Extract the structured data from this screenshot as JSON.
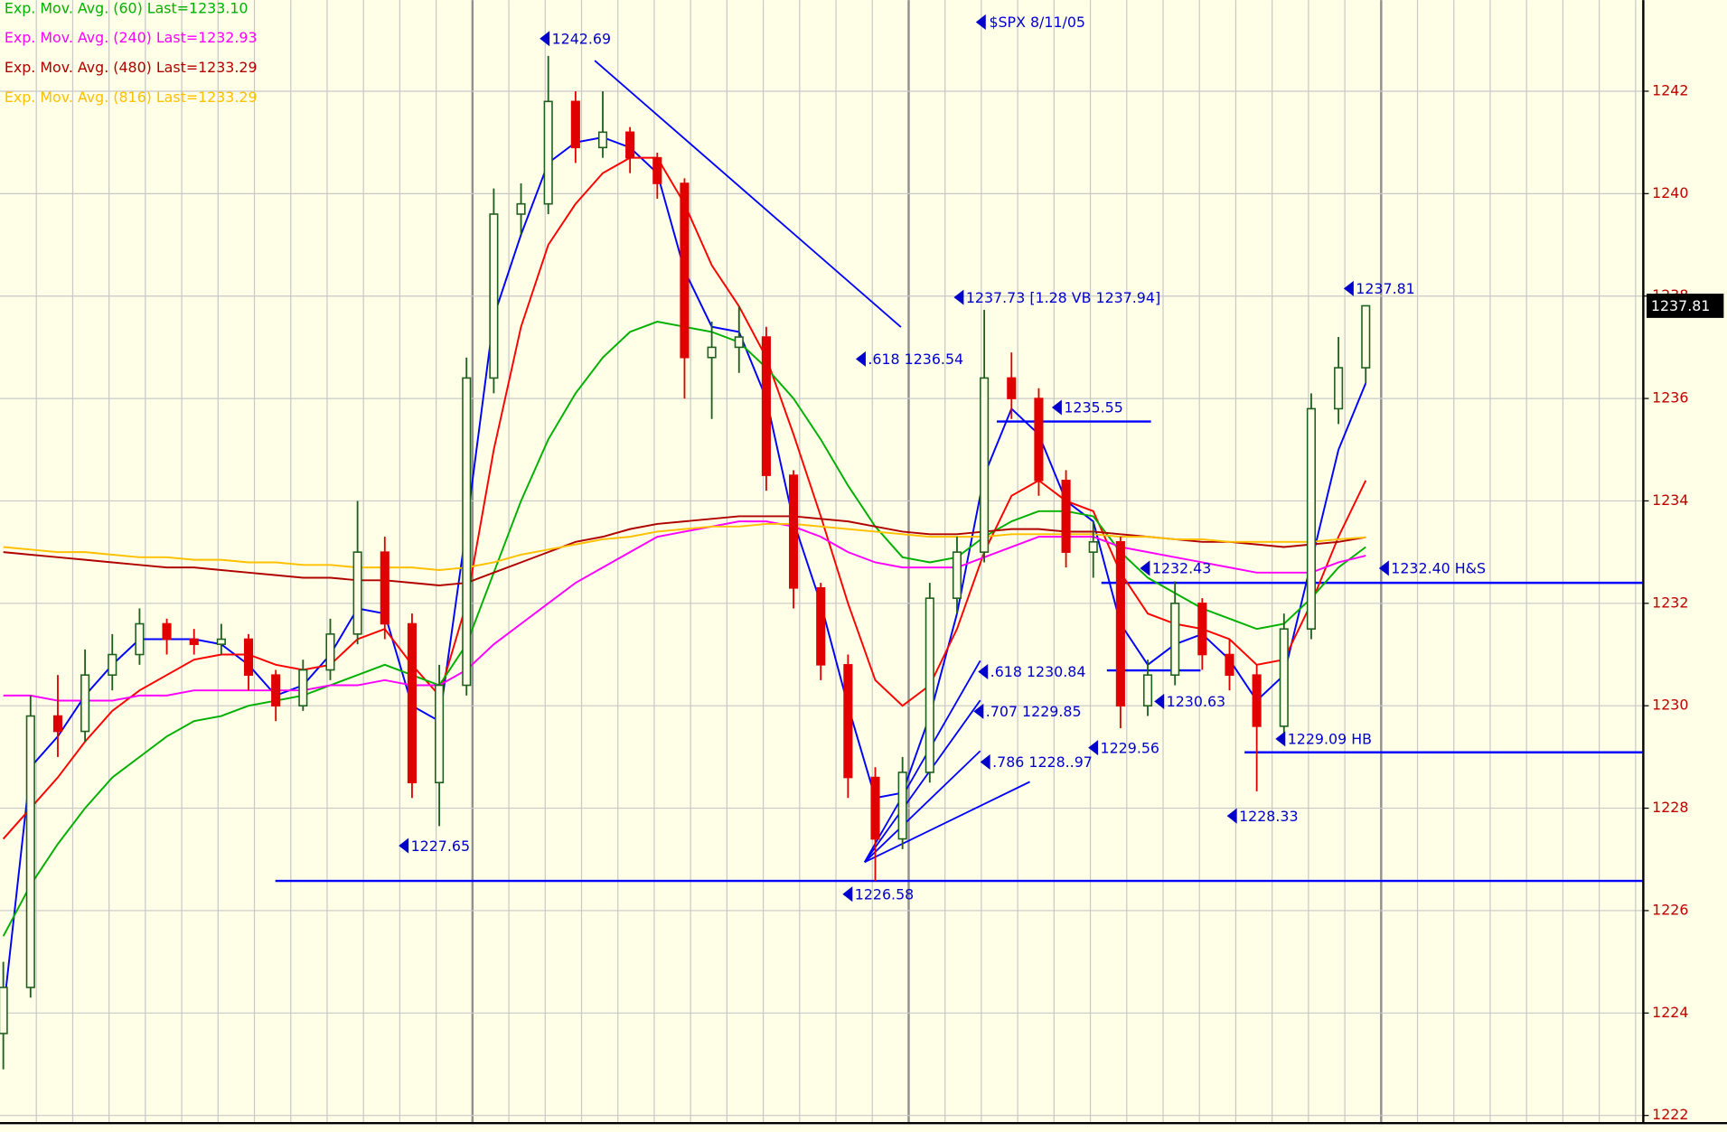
{
  "chart_data": {
    "type": "candlestick",
    "title": "$SPX  8/11/05",
    "up_color": "#1f5f1f",
    "down_color": "#e00000",
    "open": [
      1223.6,
      1224.5,
      1229.8,
      1229.5,
      1230.6,
      1231.0,
      1231.6,
      1231.3,
      1231.2,
      1231.3,
      1230.6,
      1230.0,
      1230.7,
      1231.4,
      1233.0,
      1231.6,
      1228.5,
      1230.4,
      1236.4,
      1239.6,
      1239.8,
      1241.8,
      1240.9,
      1241.2,
      1240.7,
      1240.2,
      1236.8,
      1237.0,
      1237.2,
      1234.5,
      1232.3,
      1230.8,
      1228.6,
      1227.4,
      1228.7,
      1232.1,
      1233.0,
      1236.4,
      1236.0,
      1234.4,
      1233.0,
      1233.2,
      1230.0,
      1230.6,
      1232.0,
      1231.0,
      1230.6,
      1229.6,
      1231.5,
      1235.8,
      1236.6
    ],
    "high": [
      1225.0,
      1230.2,
      1230.6,
      1231.1,
      1231.4,
      1231.9,
      1231.7,
      1231.5,
      1231.6,
      1231.4,
      1230.7,
      1230.9,
      1231.7,
      1234.0,
      1233.3,
      1231.8,
      1230.8,
      1236.8,
      1240.1,
      1240.2,
      1242.69,
      1242.0,
      1242.0,
      1241.3,
      1240.8,
      1240.3,
      1237.5,
      1237.8,
      1237.4,
      1234.6,
      1232.4,
      1231.0,
      1228.8,
      1229.0,
      1232.4,
      1233.3,
      1237.73,
      1236.9,
      1236.2,
      1234.6,
      1233.6,
      1233.3,
      1230.9,
      1232.43,
      1232.1,
      1231.3,
      1230.8,
      1231.8,
      1236.1,
      1237.2,
      1237.81
    ],
    "low": [
      1222.9,
      1224.3,
      1229.0,
      1229.3,
      1230.3,
      1230.8,
      1231.0,
      1231.0,
      1231.0,
      1230.3,
      1229.7,
      1229.9,
      1230.5,
      1231.2,
      1231.3,
      1228.2,
      1227.65,
      1230.2,
      1236.1,
      1239.2,
      1239.6,
      1240.6,
      1240.7,
      1240.4,
      1239.9,
      1236.0,
      1235.6,
      1236.5,
      1234.2,
      1231.9,
      1230.5,
      1228.2,
      1226.58,
      1227.2,
      1228.5,
      1231.8,
      1232.8,
      1235.6,
      1234.1,
      1232.7,
      1232.5,
      1229.56,
      1229.8,
      1230.4,
      1230.7,
      1230.3,
      1228.33,
      1229.4,
      1231.3,
      1235.5,
      1236.3
    ],
    "close": [
      1224.5,
      1229.8,
      1229.5,
      1230.6,
      1231.0,
      1231.6,
      1231.3,
      1231.2,
      1231.3,
      1230.6,
      1230.0,
      1230.7,
      1231.4,
      1233.0,
      1231.6,
      1228.5,
      1230.4,
      1236.4,
      1239.6,
      1239.8,
      1241.8,
      1240.9,
      1241.2,
      1240.7,
      1240.2,
      1236.8,
      1237.0,
      1237.2,
      1234.5,
      1232.3,
      1230.8,
      1228.6,
      1227.4,
      1228.7,
      1232.1,
      1233.0,
      1236.4,
      1236.0,
      1234.4,
      1233.0,
      1233.2,
      1230.0,
      1230.6,
      1232.0,
      1231.0,
      1230.6,
      1229.6,
      1231.5,
      1235.8,
      1236.6,
      1237.81
    ],
    "series": [
      {
        "color": "#0000ff",
        "values": [
          1224.0,
          1228.8,
          1229.4,
          1230.2,
          1230.8,
          1231.3,
          1231.3,
          1231.3,
          1231.2,
          1230.8,
          1230.2,
          1230.4,
          1231.0,
          1231.9,
          1231.8,
          1230.0,
          1229.7,
          1233.5,
          1237.6,
          1239.2,
          1240.6,
          1241.0,
          1241.1,
          1240.9,
          1240.4,
          1238.5,
          1237.4,
          1237.3,
          1236.0,
          1233.6,
          1232.0,
          1230.0,
          1228.2,
          1228.3,
          1229.8,
          1231.8,
          1234.5,
          1235.8,
          1235.3,
          1234.0,
          1233.6,
          1231.6,
          1230.8,
          1231.2,
          1231.4,
          1230.9,
          1230.1,
          1230.6,
          1232.8,
          1235.0,
          1236.3
        ]
      },
      {
        "color": "#ff0000",
        "values": [
          1227.4,
          1228.0,
          1228.6,
          1229.3,
          1229.9,
          1230.3,
          1230.6,
          1230.9,
          1231.0,
          1231.0,
          1230.8,
          1230.7,
          1230.8,
          1231.3,
          1231.5,
          1230.8,
          1230.2,
          1232.0,
          1235.0,
          1237.4,
          1239.0,
          1239.8,
          1240.4,
          1240.7,
          1240.7,
          1239.8,
          1238.6,
          1237.8,
          1236.8,
          1235.3,
          1233.7,
          1232.0,
          1230.5,
          1230.0,
          1230.4,
          1231.5,
          1233.0,
          1234.1,
          1234.4,
          1234.0,
          1233.8,
          1232.6,
          1231.8,
          1231.6,
          1231.5,
          1231.3,
          1230.8,
          1230.9,
          1232.0,
          1233.3,
          1234.4
        ]
      },
      {
        "name": "Exp. Mov. Avg. (60) Last=1233.10",
        "color": "#00b000",
        "values": [
          1225.5,
          1226.5,
          1227.3,
          1228.0,
          1228.6,
          1229.0,
          1229.4,
          1229.7,
          1229.8,
          1230.0,
          1230.1,
          1230.2,
          1230.4,
          1230.6,
          1230.8,
          1230.6,
          1230.4,
          1231.2,
          1232.6,
          1234.0,
          1235.2,
          1236.1,
          1236.8,
          1237.3,
          1237.5,
          1237.4,
          1237.3,
          1237.1,
          1236.6,
          1236.0,
          1235.2,
          1234.3,
          1233.5,
          1232.9,
          1232.8,
          1232.9,
          1233.3,
          1233.6,
          1233.8,
          1233.8,
          1233.7,
          1233.0,
          1232.5,
          1232.2,
          1231.9,
          1231.7,
          1231.5,
          1231.6,
          1232.1,
          1232.7,
          1233.1
        ]
      },
      {
        "name": "Exp. Mov. Avg. (240) Last=1232.93",
        "color": "#ff00ff",
        "values": [
          1230.2,
          1230.2,
          1230.1,
          1230.1,
          1230.1,
          1230.2,
          1230.2,
          1230.3,
          1230.3,
          1230.3,
          1230.3,
          1230.3,
          1230.4,
          1230.4,
          1230.5,
          1230.4,
          1230.4,
          1230.7,
          1231.2,
          1231.6,
          1232.0,
          1232.4,
          1232.7,
          1233.0,
          1233.3,
          1233.4,
          1233.5,
          1233.6,
          1233.6,
          1233.5,
          1233.3,
          1233.0,
          1232.8,
          1232.7,
          1232.7,
          1232.7,
          1232.9,
          1233.1,
          1233.3,
          1233.3,
          1233.3,
          1233.1,
          1233.0,
          1232.9,
          1232.8,
          1232.7,
          1232.6,
          1232.6,
          1232.6,
          1232.8,
          1232.93
        ]
      },
      {
        "name": "Exp. Mov. Avg. (480) Last=1233.29",
        "color": "#b00000",
        "values": [
          1233.0,
          1232.95,
          1232.9,
          1232.85,
          1232.8,
          1232.75,
          1232.7,
          1232.7,
          1232.65,
          1232.6,
          1232.55,
          1232.5,
          1232.5,
          1232.45,
          1232.45,
          1232.4,
          1232.35,
          1232.4,
          1232.6,
          1232.8,
          1233.0,
          1233.2,
          1233.3,
          1233.45,
          1233.55,
          1233.6,
          1233.65,
          1233.7,
          1233.7,
          1233.7,
          1233.65,
          1233.6,
          1233.5,
          1233.4,
          1233.35,
          1233.35,
          1233.4,
          1233.45,
          1233.45,
          1233.4,
          1233.4,
          1233.35,
          1233.3,
          1233.25,
          1233.2,
          1233.2,
          1233.15,
          1233.1,
          1233.15,
          1233.2,
          1233.29
        ]
      },
      {
        "name": "Exp. Mov. Avg. (816) Last=1233.29",
        "color": "#ffc000",
        "values": [
          1233.1,
          1233.05,
          1233.0,
          1233.0,
          1232.95,
          1232.9,
          1232.9,
          1232.85,
          1232.85,
          1232.8,
          1232.8,
          1232.75,
          1232.75,
          1232.7,
          1232.7,
          1232.7,
          1232.65,
          1232.7,
          1232.8,
          1232.95,
          1233.05,
          1233.15,
          1233.25,
          1233.3,
          1233.4,
          1233.45,
          1233.5,
          1233.5,
          1233.55,
          1233.55,
          1233.5,
          1233.45,
          1233.4,
          1233.35,
          1233.3,
          1233.3,
          1233.3,
          1233.35,
          1233.35,
          1233.35,
          1233.35,
          1233.3,
          1233.3,
          1233.25,
          1233.25,
          1233.2,
          1233.2,
          1233.2,
          1233.2,
          1233.25,
          1233.29
        ]
      }
    ],
    "levels": [
      1226.58,
      1229.09,
      1232.4,
      1235.55,
      1230.69
    ],
    "level_color": "#0000ff",
    "annotations": [
      "1242.69",
      "1237.73  [1.28 VB 1237.94]",
      ".618 1236.54",
      "1235.55",
      "1237.81",
      "1232.43",
      "1232.40  H&S",
      ".618 1230.84",
      "1230.63",
      ".707 1229.85",
      "1229.56",
      "1229.09 HB",
      ".786 1228..97",
      "1228.33",
      "1227.65",
      "1226.58"
    ],
    "annotation_color": "#0000cc",
    "ylim": [
      1221.85,
      1243.78
    ],
    "yticks": [
      1222,
      1224,
      1226,
      1228,
      1230,
      1232,
      1234,
      1236,
      1238,
      1240,
      1242
    ],
    "grid": true,
    "legend": "top-left"
  }
}
